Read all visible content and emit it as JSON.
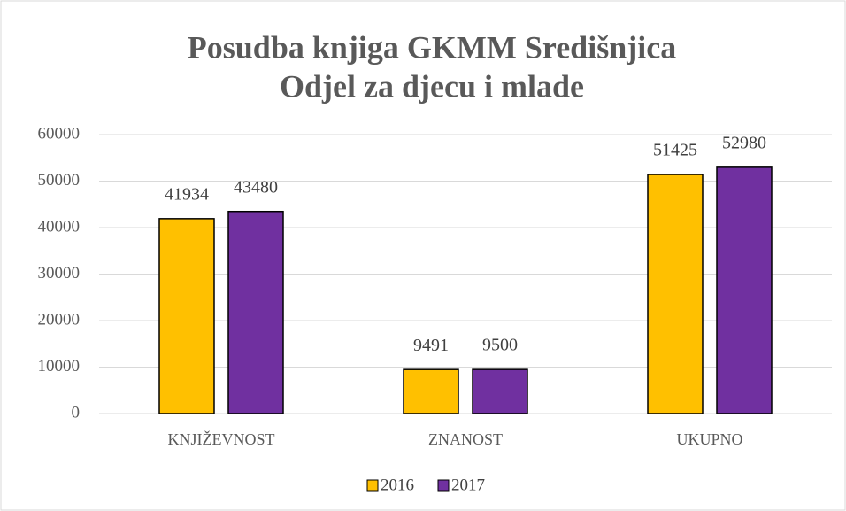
{
  "chart_data": {
    "type": "bar",
    "title": "Posudba knjiga GKMM Središnjica",
    "subtitle": "Odjel za djecu i mlade",
    "categories": [
      "KNJIŽEVNOST",
      "ZNANOST",
      "UKUPNO"
    ],
    "series": [
      {
        "name": "2016",
        "color": "#ffc000",
        "values": [
          41934,
          9491,
          51425
        ]
      },
      {
        "name": "2017",
        "color": "#7030a0",
        "values": [
          43480,
          9500,
          52980
        ]
      }
    ],
    "ylim": [
      0,
      60000
    ],
    "yticks": [
      0,
      10000,
      20000,
      30000,
      40000,
      50000,
      60000
    ],
    "grid": true,
    "legend": "bottom"
  }
}
